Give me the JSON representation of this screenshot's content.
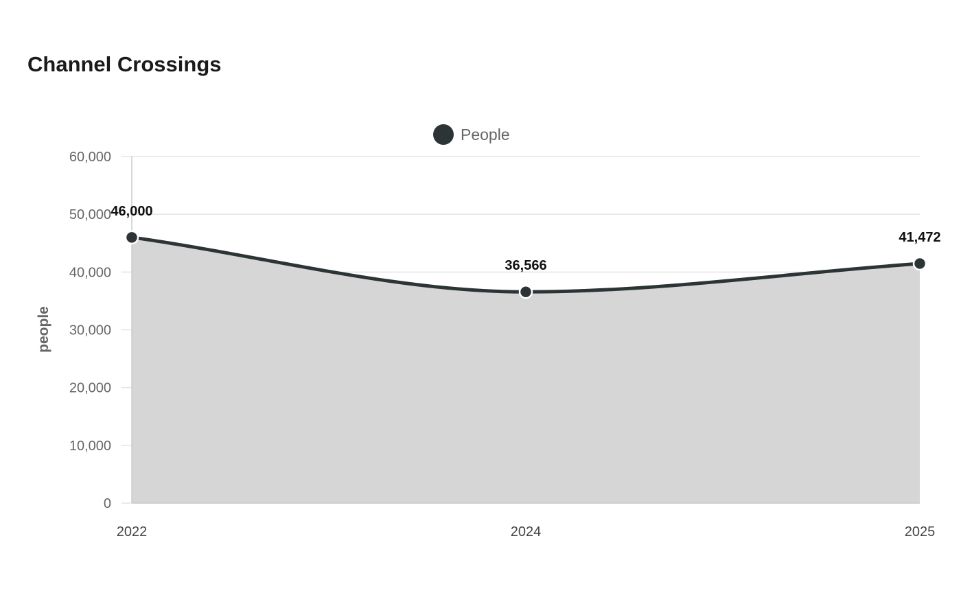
{
  "chart_data": {
    "type": "area",
    "title": "Channel Crossings",
    "ylabel": "people",
    "xlabel": "",
    "categories": [
      "2022",
      "2024",
      "2025"
    ],
    "series": [
      {
        "name": "People",
        "values": [
          46000,
          36566,
          41472
        ],
        "labels": [
          "46,000",
          "36,566",
          "41,472"
        ]
      }
    ],
    "ylim": [
      0,
      60000
    ],
    "yticks": [
      0,
      10000,
      20000,
      30000,
      40000,
      50000,
      60000
    ],
    "ytick_labels": [
      "0",
      "10,000",
      "20,000",
      "30,000",
      "40,000",
      "50,000",
      "60,000"
    ],
    "legend_position": "top-center",
    "grid": true,
    "colors": {
      "line": "#2d3436",
      "fill": "#d6d6d6",
      "grid": "#e4e4e4"
    }
  }
}
